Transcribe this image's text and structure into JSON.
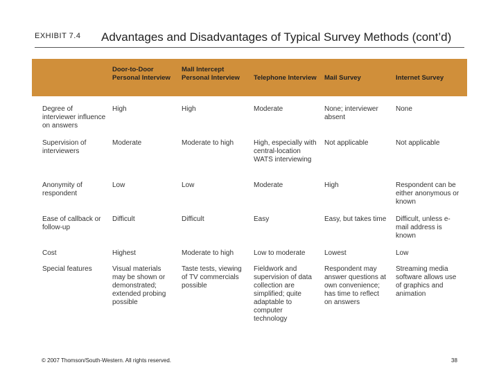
{
  "header": {
    "exhibit_label": "EXHIBIT 7.4",
    "title": "Advantages and Disadvantages of Typical Survey Methods (cont’d)"
  },
  "table": {
    "columns": [
      "",
      "Door-to-Door Personal Interview",
      "Mall Intercept Personal Interview",
      "Telephone Interview",
      "Mail Survey",
      "Internet Survey"
    ],
    "rows": [
      [
        "Degree of interviewer influence on answers",
        "High",
        "High",
        "Moderate",
        "None; interviewer absent",
        "None"
      ],
      [
        "Supervision of interviewers",
        "Moderate",
        "Moderate to high",
        "High, especially with central-location WATS interviewing",
        "Not applicable",
        "Not applicable"
      ],
      [
        "Anonymity of respondent",
        "Low",
        "Low",
        "Moderate",
        "High",
        "Respondent can be either anonymous or known"
      ],
      [
        "Ease of callback or follow-up",
        "Difficult",
        "Difficult",
        "Easy",
        "Easy, but takes time",
        "Difficult, unless e-mail address is known"
      ],
      [
        "Cost",
        "Highest",
        "Moderate to high",
        "Low to moderate",
        "Lowest",
        "Low"
      ],
      [
        "Special features",
        "Visual materials may be shown or demonstrated; extended probing possible",
        "Taste tests, viewing of TV commercials possible",
        "Fieldwork and supervision of data collection are simplified; quite adaptable to computer technology",
        "Respondent may answer questions at own convenience; has time to reflect on answers",
        "Streaming media software allows use of graphics and animation"
      ]
    ]
  },
  "footer": {
    "copyright": "© 2007 Thomson/South-Western. All rights reserved.",
    "page_number": "38"
  },
  "colors": {
    "header_band": "#d08f3a"
  }
}
